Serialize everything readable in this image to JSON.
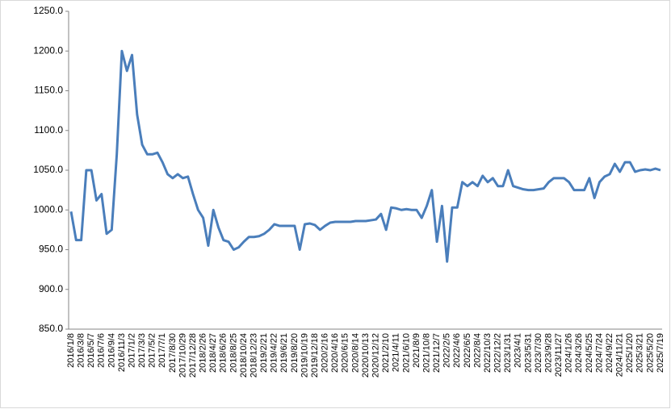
{
  "chart_data": {
    "type": "line",
    "categories": [
      "2016/1/8",
      null,
      "2016/3/8",
      null,
      "2016/5/7",
      null,
      "2016/7/6",
      null,
      "2016/9/4",
      null,
      "2016/11/3",
      null,
      "2017/1/2",
      null,
      "2017/3/3",
      null,
      "2017/5/2",
      null,
      "2017/7/1",
      null,
      "2017/8/30",
      null,
      "2017/10/29",
      null,
      "2017/12/28",
      null,
      "2018/2/26",
      null,
      "2018/4/27",
      null,
      "2018/6/26",
      null,
      "2018/8/25",
      null,
      "2018/10/24",
      null,
      "2018/12/23",
      null,
      "2019/2/21",
      null,
      "2019/4/22",
      null,
      "2019/6/21",
      null,
      "2019/8/20",
      null,
      "2019/10/19",
      null,
      "2019/12/18",
      null,
      "2020/2/16",
      null,
      "2020/4/16",
      null,
      "2020/6/15",
      null,
      "2020/8/14",
      null,
      "2020/10/13",
      null,
      "2020/12/12",
      null,
      "2021/2/10",
      null,
      "2021/4/11",
      null,
      "2021/6/10",
      null,
      "2021/8/9",
      null,
      "2021/10/8",
      null,
      "2021/12/7",
      null,
      "2022/2/5",
      null,
      "2022/4/6",
      null,
      "2022/6/5",
      null,
      "2022/8/4",
      null,
      "2022/10/3",
      null,
      "2022/12/2",
      null,
      "2023/1/31",
      null,
      "2023/4/1",
      null,
      "2023/5/31",
      null,
      "2023/7/30",
      null,
      "2023/9/28",
      null,
      "2023/11/27",
      null,
      "2024/1/26",
      null,
      "2024/3/26",
      null,
      "2024/5/25",
      null,
      "2024/7/24",
      null,
      "2024/9/22",
      null,
      "2024/11/21",
      null,
      "2025/1/20",
      null,
      "2025/3/21",
      null,
      "2025/5/20",
      null,
      "2025/7/19"
    ],
    "series": [
      {
        "color": "#4a7ebb",
        "values": [
          998,
          962,
          962,
          1050,
          1050,
          1012,
          1020,
          970,
          975,
          1070,
          1200,
          1175,
          1195,
          1120,
          1082,
          1070,
          1070,
          1072,
          1060,
          1045,
          1040,
          1045,
          1040,
          1042,
          1020,
          1000,
          990,
          955,
          1000,
          978,
          962,
          960,
          950,
          953,
          960,
          966,
          966,
          967,
          970,
          975,
          982,
          980,
          980,
          980,
          980,
          950,
          982,
          983,
          981,
          975,
          980,
          984,
          985,
          985,
          985,
          985,
          986,
          986,
          986,
          987,
          988,
          995,
          975,
          1003,
          1002,
          1000,
          1001,
          1000,
          1000,
          990,
          1005,
          1025,
          960,
          1005,
          935,
          1003,
          1003,
          1035,
          1030,
          1035,
          1030,
          1043,
          1035,
          1040,
          1030,
          1030,
          1050,
          1030,
          1028,
          1026,
          1025,
          1025,
          1026,
          1027,
          1035,
          1040,
          1040,
          1040,
          1035,
          1025,
          1025,
          1025,
          1040,
          1015,
          1035,
          1042,
          1045,
          1058,
          1048,
          1060,
          1060,
          1048,
          1050,
          1051,
          1050,
          1052,
          1050
        ]
      }
    ],
    "ylim": [
      850,
      1250
    ],
    "yticks": [
      {
        "value": 850,
        "label": "850.0"
      },
      {
        "value": 900,
        "label": "900.0"
      },
      {
        "value": 950,
        "label": "950.0"
      },
      {
        "value": 1000,
        "label": "1000.0"
      },
      {
        "value": 1050,
        "label": "1050.0"
      },
      {
        "value": 1100,
        "label": "1100.0"
      },
      {
        "value": 1150,
        "label": "1150.0"
      },
      {
        "value": 1200,
        "label": "1200.0"
      },
      {
        "value": 1250,
        "label": "1250.0"
      }
    ],
    "grid": false
  }
}
